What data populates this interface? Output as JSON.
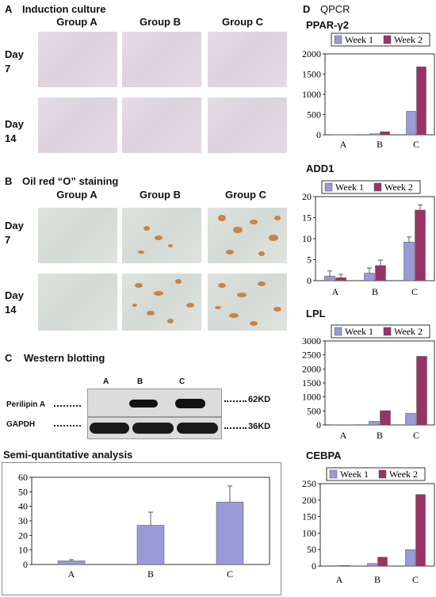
{
  "panels": {
    "a": {
      "letter": "A",
      "title": "Induction culture",
      "groups": [
        "Group A",
        "Group B",
        "Group C"
      ],
      "rows": [
        "Day\n7",
        "Day\n14"
      ]
    },
    "b": {
      "letter": "B",
      "title": "Oil red “O” staining",
      "groups": [
        "Group A",
        "Group B",
        "Group C"
      ],
      "rows": [
        "Day\n7",
        "Day\n14"
      ]
    },
    "c": {
      "letter": "C",
      "title": "Western blotting",
      "lanes": [
        "A",
        "B",
        "C"
      ],
      "proteins": [
        "Perilipin A",
        "GAPDH"
      ],
      "sizes": [
        "62KD",
        "36KD"
      ],
      "semi_title": "Semi-quantitative analysis"
    },
    "d": {
      "letter": "D",
      "title": "QPCR"
    }
  },
  "chart_data": [
    {
      "id": "semi",
      "type": "bar",
      "categories": [
        "A",
        "B",
        "C"
      ],
      "series": [
        {
          "values": [
            2.5,
            27,
            43
          ],
          "errors": [
            0.8,
            9,
            11
          ],
          "color": "#9a9ad6"
        }
      ],
      "ylim": [
        0,
        60
      ],
      "yticks": [
        0,
        10,
        20,
        30,
        40,
        50,
        60
      ],
      "title": "",
      "xlabel": "",
      "ylabel": ""
    },
    {
      "id": "ppar",
      "type": "bar",
      "title": "PPAR-γ2",
      "categories": [
        "A",
        "B",
        "C"
      ],
      "series": [
        {
          "name": "Week 1",
          "values": [
            3,
            25,
            580
          ],
          "color": "#9a9ad6"
        },
        {
          "name": "Week 2",
          "values": [
            5,
            75,
            1680
          ],
          "color": "#993366"
        }
      ],
      "ylim": [
        0,
        2000
      ],
      "yticks": [
        0,
        500,
        1000,
        1500,
        2000
      ],
      "legend": "top"
    },
    {
      "id": "add1",
      "type": "bar",
      "title": "ADD1",
      "categories": [
        "A",
        "B",
        "C"
      ],
      "series": [
        {
          "name": "Week 1",
          "values": [
            1.1,
            1.8,
            9.2
          ],
          "errors": [
            1.2,
            1.2,
            1.2
          ],
          "color": "#9a9ad6"
        },
        {
          "name": "Week 2",
          "values": [
            0.7,
            3.6,
            16.8
          ],
          "errors": [
            0.8,
            1.3,
            1.2
          ],
          "color": "#993366"
        }
      ],
      "ylim": [
        0,
        20
      ],
      "yticks": [
        0,
        5,
        10,
        15,
        20
      ],
      "legend": "top"
    },
    {
      "id": "lpl",
      "type": "bar",
      "title": "LPL",
      "categories": [
        "A",
        "B",
        "C"
      ],
      "series": [
        {
          "name": "Week 1",
          "values": [
            2,
            130,
            420
          ],
          "color": "#9a9ad6"
        },
        {
          "name": "Week 2",
          "values": [
            4,
            510,
            2450
          ],
          "color": "#993366"
        }
      ],
      "ylim": [
        0,
        3000
      ],
      "yticks": [
        0,
        500,
        1000,
        1500,
        2000,
        2500,
        3000
      ],
      "legend": "top"
    },
    {
      "id": "cebpa",
      "type": "bar",
      "title": "CEBPA",
      "categories": [
        "A",
        "B",
        "C"
      ],
      "series": [
        {
          "name": "Week 1",
          "values": [
            1,
            8,
            50
          ],
          "color": "#9a9ad6"
        },
        {
          "name": "Week 2",
          "values": [
            2,
            27,
            217
          ],
          "color": "#993366"
        }
      ],
      "ylim": [
        0,
        250
      ],
      "yticks": [
        0,
        50,
        100,
        150,
        200,
        250
      ],
      "legend": "top"
    }
  ]
}
